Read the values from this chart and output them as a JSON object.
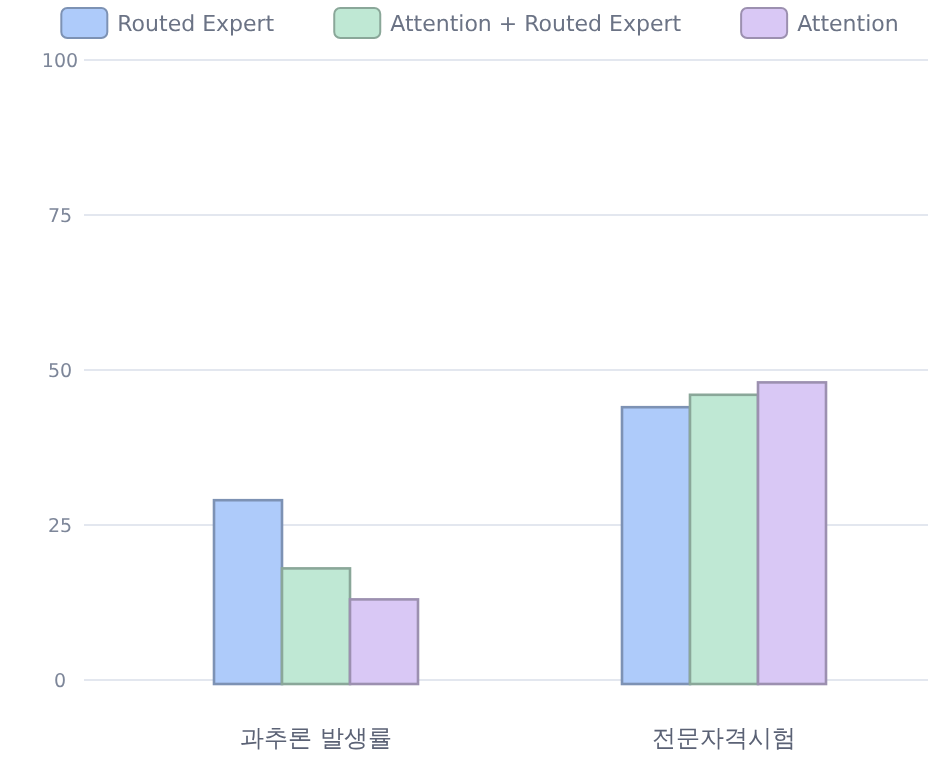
{
  "chart_data": {
    "type": "bar",
    "categories": [
      "과추론 발생률",
      "전문자격시험"
    ],
    "series": [
      {
        "name": "Routed Expert",
        "color": "#aecbfa",
        "values": [
          29,
          44
        ]
      },
      {
        "name": "Attention + Routed Expert",
        "color": "#bfe8d4",
        "values": [
          18,
          46
        ]
      },
      {
        "name": "Attention",
        "color": "#d9c8f5",
        "values": [
          13,
          48
        ]
      }
    ],
    "ylim": [
      0,
      100
    ],
    "yticks": [
      0,
      25,
      50,
      75,
      100
    ],
    "grid": "y",
    "legend": "top"
  }
}
